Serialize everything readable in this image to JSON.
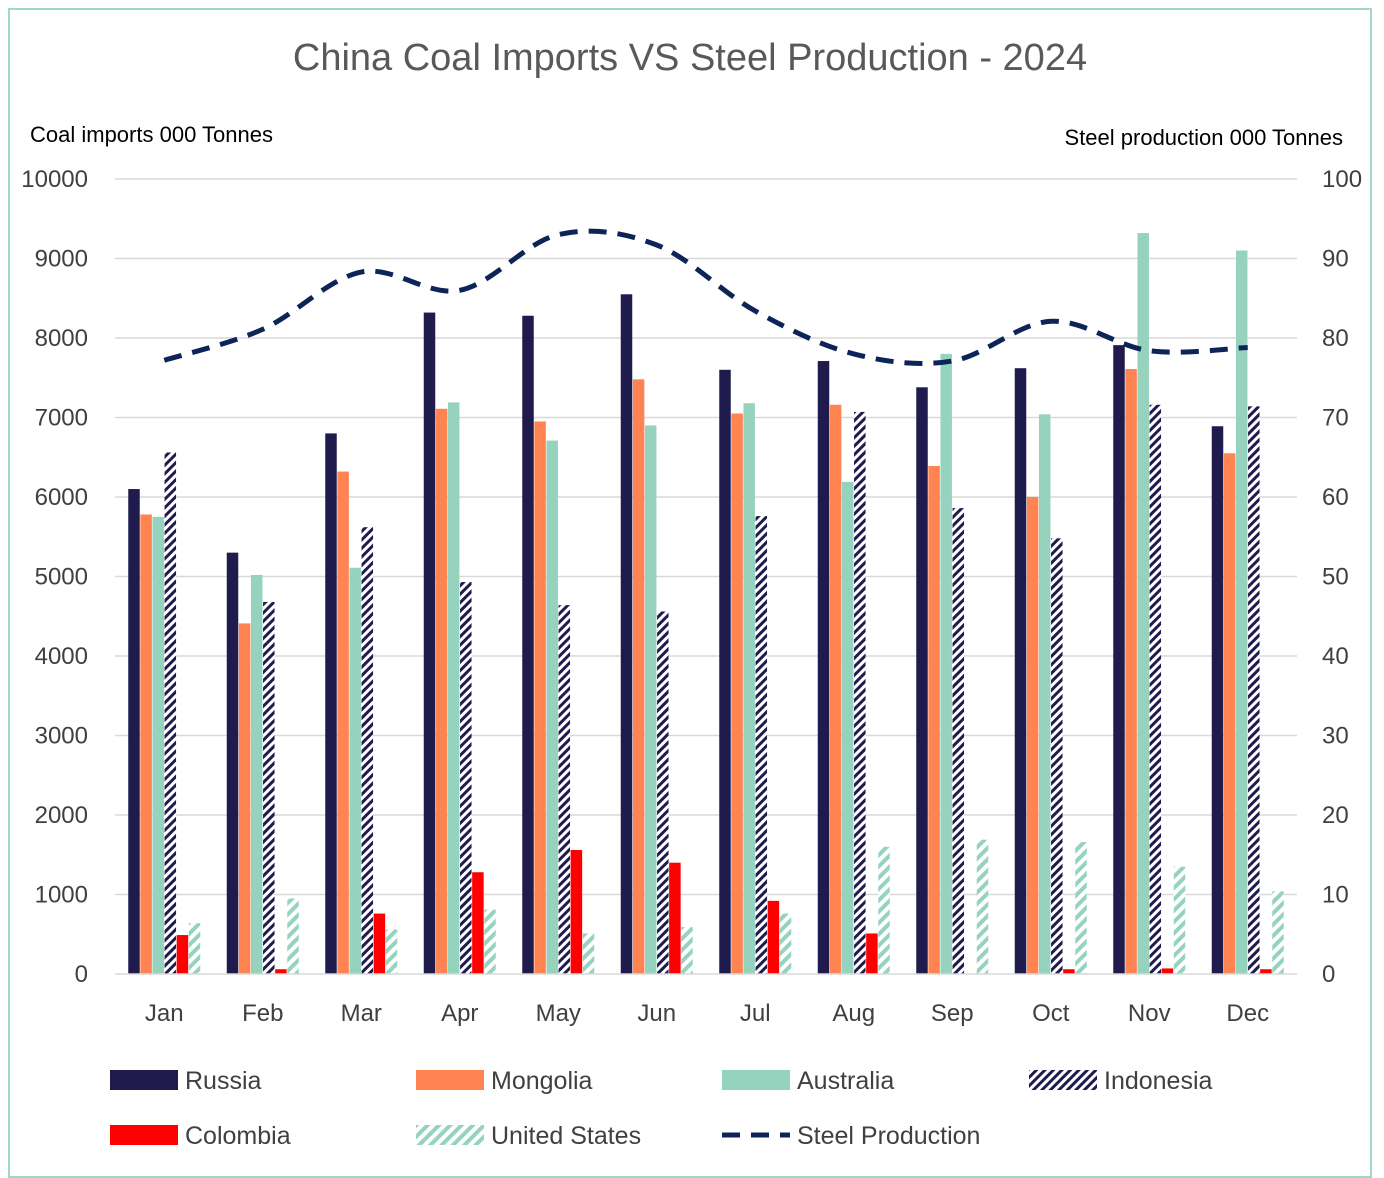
{
  "chart_data": {
    "type": "bar",
    "title": "China Coal Imports VS Steel Production - 2024",
    "ylabel_left": "Coal imports 000 Tonnes",
    "ylabel_right": "Steel production 000 Tonnes",
    "ylim_left": [
      0,
      10000
    ],
    "ylim_right": [
      0,
      100
    ],
    "yticks_left": [
      "0",
      "1000",
      "2000",
      "3000",
      "4000",
      "5000",
      "6000",
      "7000",
      "8000",
      "9000",
      "10000"
    ],
    "yticks_right": [
      "0",
      "10",
      "20",
      "30",
      "40",
      "50",
      "60",
      "70",
      "80",
      "90",
      "100"
    ],
    "grid": true,
    "legend_position": "bottom",
    "categories": [
      "Jan",
      "Feb",
      "Mar",
      "Apr",
      "May",
      "Jun",
      "Jul",
      "Aug",
      "Sep",
      "Oct",
      "Nov",
      "Dec"
    ],
    "series": [
      {
        "name": "Russia",
        "type": "bar",
        "color": "#1f1b4d",
        "pattern": "solid",
        "values": [
          6100,
          5300,
          6800,
          8320,
          8280,
          8550,
          7600,
          7710,
          7380,
          7620,
          7910,
          6890
        ]
      },
      {
        "name": "Mongolia",
        "type": "bar",
        "color": "#ff8452",
        "pattern": "solid",
        "values": [
          5780,
          4410,
          6320,
          7110,
          6950,
          7480,
          7050,
          7160,
          6390,
          6000,
          7610,
          6550
        ]
      },
      {
        "name": "Australia",
        "type": "bar",
        "color": "#96d3bf",
        "pattern": "solid",
        "values": [
          5750,
          5020,
          5110,
          7190,
          6710,
          6900,
          7180,
          6190,
          7800,
          7040,
          9320,
          9100
        ]
      },
      {
        "name": "Indonesia",
        "type": "bar",
        "color": "#1f1b4d",
        "pattern": "hatched",
        "values": [
          6560,
          4680,
          5620,
          4930,
          4640,
          4560,
          5760,
          7070,
          5860,
          5480,
          7160,
          7140
        ]
      },
      {
        "name": "Colombia",
        "type": "bar",
        "color": "#ff0000",
        "pattern": "solid",
        "values": [
          490,
          60,
          760,
          1280,
          1560,
          1400,
          920,
          510,
          0,
          60,
          70,
          60
        ]
      },
      {
        "name": "United States",
        "type": "bar",
        "color": "#96d3bf",
        "pattern": "hatched",
        "values": [
          640,
          950,
          560,
          810,
          510,
          590,
          760,
          1600,
          1690,
          1660,
          1350,
          1040
        ]
      },
      {
        "name": "Steel Production",
        "type": "line",
        "axis": "right",
        "color": "#0d2458",
        "pattern": "dashed",
        "values": [
          77.2,
          81.1,
          88.3,
          86.0,
          93.0,
          91.7,
          83.4,
          78.0,
          77.1,
          82.1,
          78.4,
          78.8
        ]
      }
    ]
  }
}
